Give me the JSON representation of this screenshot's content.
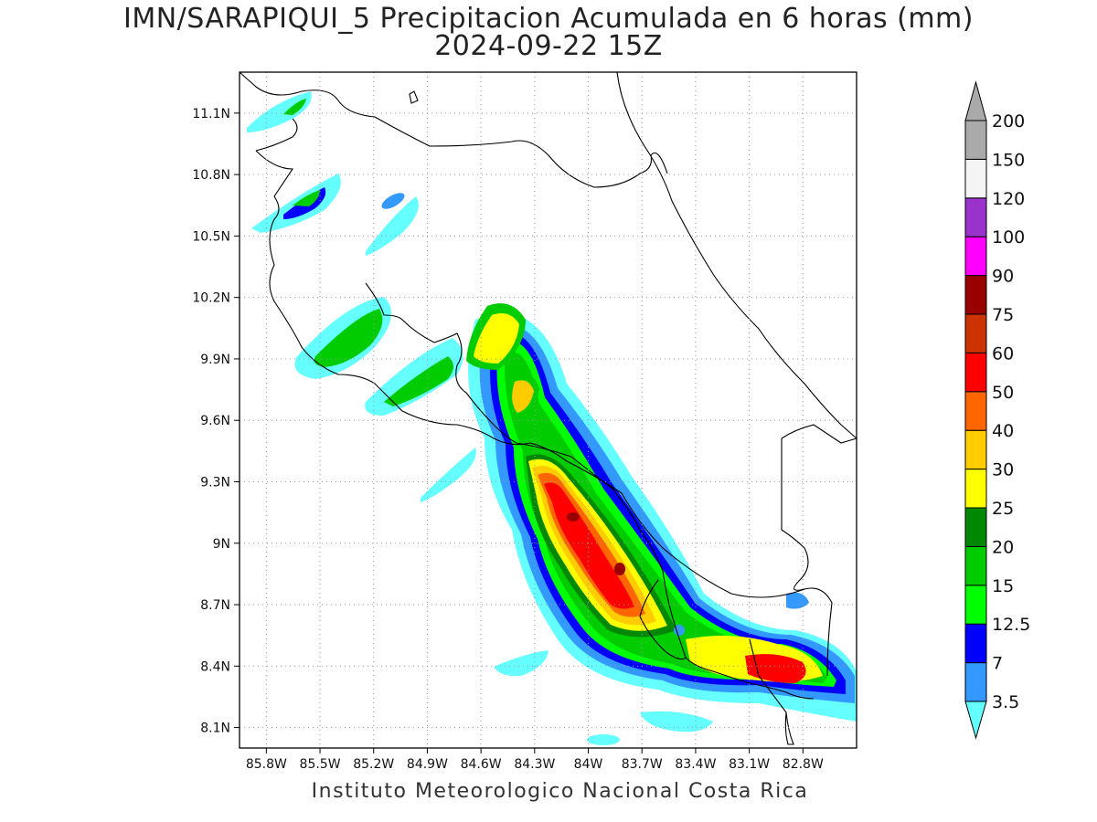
{
  "title_line1": "IMN/SARAPIQUI_5 Precipitacion Acumulada en 6 horas (mm)",
  "title_line2": "2024-09-22 15Z",
  "credit": "Instituto Meteorologico Nacional Costa Rica",
  "map": {
    "lon_range": [
      -85.95,
      -82.5
    ],
    "lat_range": [
      8.0,
      11.3
    ],
    "lon_ticks": [
      "85.8W",
      "85.5W",
      "85.2W",
      "84.9W",
      "84.6W",
      "84.3W",
      "84W",
      "83.7W",
      "83.4W",
      "83.1W",
      "82.8W"
    ],
    "lat_ticks": [
      "8.1N",
      "8.4N",
      "8.7N",
      "9N",
      "9.3N",
      "9.6N",
      "9.9N",
      "10.2N",
      "10.5N",
      "10.8N",
      "11.1N"
    ],
    "grid": true
  },
  "colorbar": {
    "unit": "mm",
    "levels": [
      "3.5",
      "7",
      "12.5",
      "15",
      "20",
      "25",
      "30",
      "40",
      "50",
      "60",
      "75",
      "90",
      "100",
      "120",
      "150",
      "200"
    ],
    "colors": [
      "#66ffff",
      "#3399ff",
      "#0000ff",
      "#00ff00",
      "#00cc00",
      "#008800",
      "#ffff00",
      "#ffcc00",
      "#ff6600",
      "#ff0000",
      "#cc3300",
      "#990000",
      "#ff00ff",
      "#9933cc",
      "#f4f4f4",
      "#aaaaaa"
    ]
  }
}
